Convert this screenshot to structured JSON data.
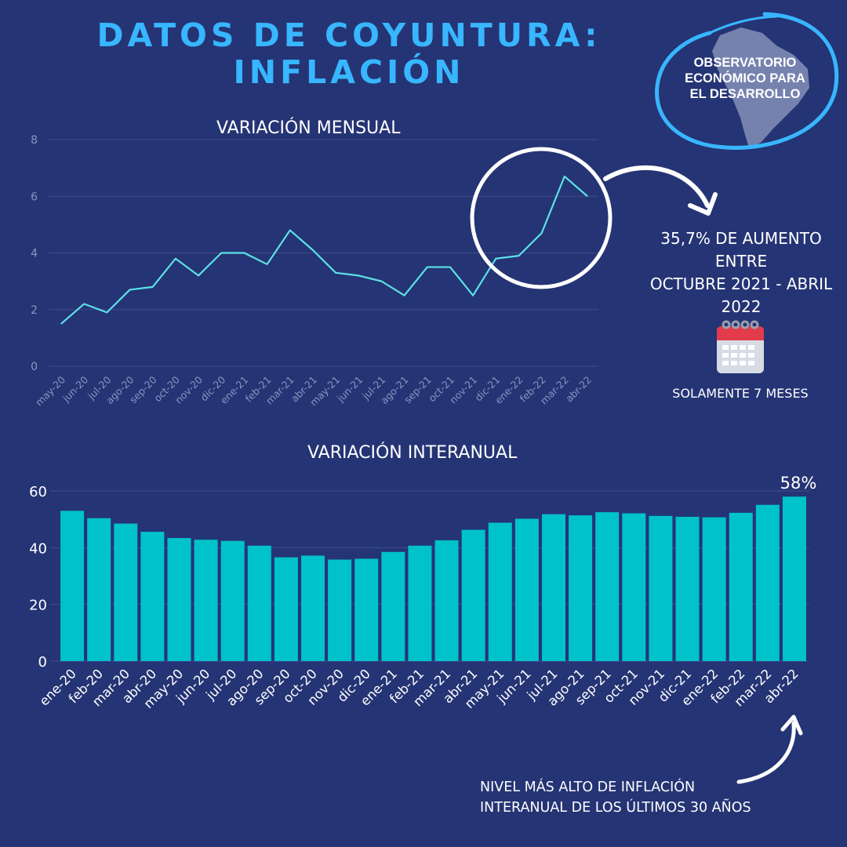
{
  "header": {
    "title_line1": "DATOS DE COYUNTURA:",
    "title_line2": "INFLACIÓN"
  },
  "logo": {
    "line1": "OBSERVATORIO",
    "line2": "ECONÓMICO PARA",
    "line3": "EL DESARROLLO"
  },
  "annotations": {
    "monthly_increase": [
      "35,7% DE AUMENTO",
      "ENTRE",
      "OCTUBRE 2021 - ABRIL",
      "2022"
    ],
    "months_note": "SOLAMENTE 7 MESES",
    "peak_label": "58%",
    "record_note": [
      "NIVEL MÁS ALTO DE INFLACIÓN",
      "INTERANUAL DE LOS ÚLTIMOS 30 AÑOS"
    ]
  },
  "icons": {
    "calendar": "calendar-icon",
    "arrow1": "curved-arrow-icon",
    "arrow2": "curved-arrow-up-icon",
    "map": "south-america-map-icon"
  },
  "colors": {
    "background": "#253474",
    "title": "#38b6ff",
    "line": "#5ce1e6",
    "bar": "#00c2cb",
    "grid": "#3e4c8a",
    "text": "#ffffff",
    "axis_text": "#8b95bf"
  },
  "chart_data": [
    {
      "type": "line",
      "title": "VARIACIÓN MENSUAL",
      "categories": [
        "may-20",
        "jun-20",
        "jul-20",
        "ago-20",
        "sep-20",
        "oct-20",
        "nov-20",
        "dic-20",
        "ene-21",
        "feb-21",
        "mar-21",
        "abr-21",
        "may-21",
        "jun-21",
        "jul-21",
        "ago-21",
        "sep-21",
        "oct-21",
        "nov-21",
        "dic-21",
        "ene-22",
        "feb-22",
        "mar-22",
        "abr-22"
      ],
      "values": [
        1.5,
        2.2,
        1.9,
        2.7,
        2.8,
        3.8,
        3.2,
        4.0,
        4.0,
        3.6,
        4.8,
        4.1,
        3.3,
        3.2,
        3.0,
        2.5,
        3.5,
        3.5,
        2.5,
        3.8,
        3.9,
        4.7,
        6.7,
        6.0
      ],
      "yticks": [
        0,
        2,
        4,
        6,
        8
      ],
      "ylim": [
        0,
        8
      ],
      "grid": true
    },
    {
      "type": "bar",
      "title": "VARIACIÓN INTERANUAL",
      "categories": [
        "ene-20",
        "feb-20",
        "mar-20",
        "abr-20",
        "may-20",
        "jun-20",
        "jul-20",
        "ago-20",
        "sep-20",
        "oct-20",
        "nov-20",
        "dic-20",
        "ene-21",
        "feb-21",
        "mar-21",
        "abr-21",
        "may-21",
        "jun-21",
        "jul-21",
        "ago-21",
        "sep-21",
        "oct-21",
        "nov-21",
        "dic-21",
        "ene-22",
        "feb-22",
        "mar-22",
        "abr-22"
      ],
      "values": [
        53.0,
        50.4,
        48.5,
        45.6,
        43.4,
        42.8,
        42.4,
        40.7,
        36.6,
        37.2,
        35.8,
        36.1,
        38.5,
        40.7,
        42.6,
        46.3,
        48.8,
        50.2,
        51.8,
        51.4,
        52.5,
        52.1,
        51.2,
        50.9,
        50.7,
        52.3,
        55.1,
        58.0
      ],
      "yticks": [
        0,
        20,
        40,
        60
      ],
      "ylim": [
        0,
        60
      ],
      "grid": true
    }
  ]
}
